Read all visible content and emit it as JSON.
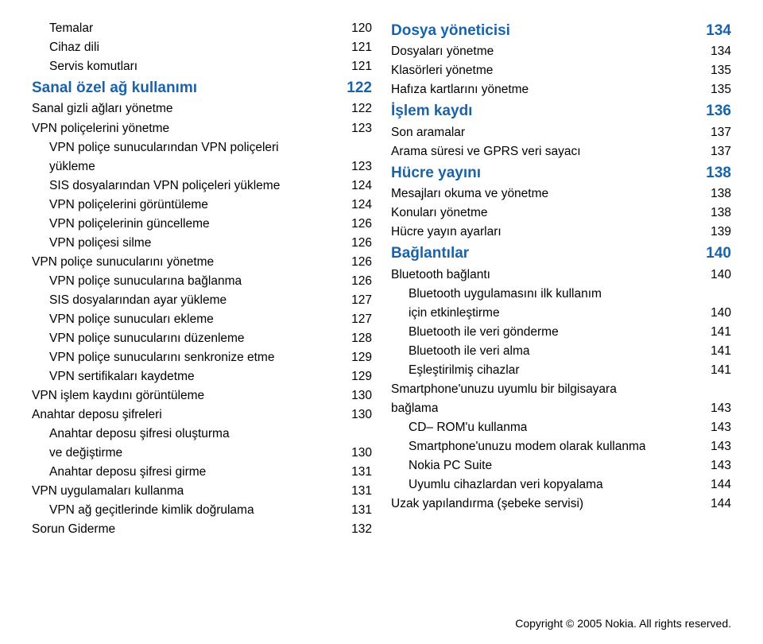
{
  "colors": {
    "heading": "#1a63a8",
    "text": "#000000",
    "background": "#ffffff"
  },
  "typography": {
    "heading_fontsize": 19,
    "body_fontsize": 15.5,
    "copyright_fontsize": 14,
    "line_height": 1.55
  },
  "leftColumn": [
    {
      "label": "Temalar",
      "page": "120",
      "level": 2
    },
    {
      "label": "Cihaz dili",
      "page": "121",
      "level": 2
    },
    {
      "label": "Servis komutları",
      "page": "121",
      "level": 2
    },
    {
      "label": "Sanal özel ağ kullanımı",
      "page": "122",
      "level": 0
    },
    {
      "label": "Sanal gizli ağları yönetme",
      "page": "122",
      "level": 1
    },
    {
      "label": "VPN poliçelerini yönetme",
      "page": "123",
      "level": 1
    },
    {
      "label_first": "VPN poliçe sunucularından VPN poliçeleri",
      "label_cont": "yükleme",
      "page": "123",
      "level": 2,
      "wrap": true
    },
    {
      "label": "SIS dosyalarından VPN poliçeleri yükleme",
      "page": "124",
      "level": 2
    },
    {
      "label": "VPN poliçelerini görüntüleme",
      "page": "124",
      "level": 2
    },
    {
      "label": "VPN poliçelerinin güncelleme",
      "page": "126",
      "level": 2
    },
    {
      "label": "VPN poliçesi silme",
      "page": "126",
      "level": 2
    },
    {
      "label": "VPN poliçe sunucularını yönetme",
      "page": "126",
      "level": 1
    },
    {
      "label": "VPN poliçe sunucularına bağlanma",
      "page": "126",
      "level": 2
    },
    {
      "label": "SIS dosyalarından ayar yükleme",
      "page": "127",
      "level": 2
    },
    {
      "label": "VPN poliçe sunucuları ekleme",
      "page": "127",
      "level": 2
    },
    {
      "label": "VPN poliçe sunucularını düzenleme",
      "page": "128",
      "level": 2
    },
    {
      "label": "VPN poliçe sunucularını senkronize etme",
      "page": "129",
      "level": 2
    },
    {
      "label": "VPN sertifikaları kaydetme",
      "page": "129",
      "level": 2
    },
    {
      "label": "VPN işlem kaydını görüntüleme",
      "page": "130",
      "level": 1
    },
    {
      "label": "Anahtar deposu şifreleri",
      "page": "130",
      "level": 1
    },
    {
      "label_first": "Anahtar deposu şifresi oluşturma",
      "label_cont": "ve değiştirme",
      "page": "130",
      "level": 2,
      "wrap": true
    },
    {
      "label": "Anahtar deposu şifresi girme",
      "page": "131",
      "level": 2
    },
    {
      "label": "VPN uygulamaları kullanma",
      "page": "131",
      "level": 1
    },
    {
      "label": "VPN ağ geçitlerinde kimlik doğrulama",
      "page": "131",
      "level": 2
    },
    {
      "label": "Sorun Giderme",
      "page": "132",
      "level": 1
    }
  ],
  "rightColumn": [
    {
      "label": "Dosya yöneticisi",
      "page": "134",
      "level": 0
    },
    {
      "label": "Dosyaları yönetme",
      "page": "134",
      "level": 1
    },
    {
      "label": "Klasörleri yönetme",
      "page": "135",
      "level": 1
    },
    {
      "label": "Hafıza kartlarını yönetme",
      "page": "135",
      "level": 1
    },
    {
      "label": "İşlem kaydı",
      "page": "136",
      "level": 0
    },
    {
      "label": "Son aramalar",
      "page": "137",
      "level": 1
    },
    {
      "label": "Arama süresi ve GPRS veri sayacı",
      "page": "137",
      "level": 1
    },
    {
      "label": "Hücre yayını",
      "page": "138",
      "level": 0
    },
    {
      "label": "Mesajları okuma ve yönetme",
      "page": "138",
      "level": 1
    },
    {
      "label": "Konuları yönetme",
      "page": "138",
      "level": 1
    },
    {
      "label": "Hücre yayın ayarları",
      "page": "139",
      "level": 1
    },
    {
      "label": "Bağlantılar",
      "page": "140",
      "level": 0
    },
    {
      "label": "Bluetooth bağlantı",
      "page": "140",
      "level": 1
    },
    {
      "label_first": "Bluetooth uygulamasını ilk kullanım",
      "label_cont": "için etkinleştirme",
      "page": "140",
      "level": 2,
      "wrap": true
    },
    {
      "label": "Bluetooth ile veri gönderme",
      "page": "141",
      "level": 2
    },
    {
      "label": "Bluetooth ile veri alma",
      "page": "141",
      "level": 2
    },
    {
      "label": "Eşleştirilmiş cihazlar",
      "page": "141",
      "level": 2
    },
    {
      "label_first": "Smartphone'unuzu uyumlu bir bilgisayara",
      "label_cont": "bağlama",
      "page": "143",
      "level": 1,
      "wrap": true
    },
    {
      "label": "CD– ROM'u kullanma",
      "page": "143",
      "level": 2
    },
    {
      "label": "Smartphone'unuzu modem olarak kullanma",
      "page": "143",
      "level": 2
    },
    {
      "label": "Nokia PC Suite",
      "page": "143",
      "level": 2
    },
    {
      "label": "Uyumlu cihazlardan veri kopyalama",
      "page": "144",
      "level": 2
    },
    {
      "label": "Uzak yapılandırma (şebeke servisi)",
      "page": "144",
      "level": 1
    }
  ],
  "copyright": "Copyright © 2005 Nokia. All rights reserved."
}
